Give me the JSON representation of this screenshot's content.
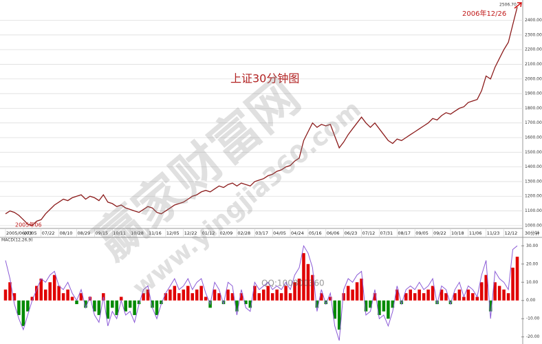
{
  "chart_data": [
    {
      "type": "line",
      "title": "上证30分钟图",
      "categories": [
        "2005/06/03",
        null,
        null,
        null,
        "07/05",
        null,
        null,
        null,
        "07/22",
        null,
        null,
        null,
        "08/10",
        null,
        null,
        null,
        "08/29",
        null,
        null,
        null,
        "09/15",
        null,
        null,
        null,
        "10/11",
        null,
        null,
        null,
        "10/28",
        null,
        null,
        null,
        "11/16",
        null,
        null,
        null,
        "12/05",
        null,
        null,
        null,
        "12/22",
        null,
        null,
        null,
        "01/12",
        null,
        null,
        null,
        "02/09",
        null,
        null,
        null,
        "02/28",
        null,
        null,
        null,
        "03/17",
        null,
        null,
        null,
        "04/05",
        null,
        null,
        null,
        "04/24",
        null,
        null,
        null,
        "05/16",
        null,
        null,
        null,
        "06/06",
        null,
        null,
        null,
        "06/23",
        null,
        null,
        null,
        "07/12",
        null,
        null,
        null,
        "07/31",
        null,
        null,
        null,
        "08/17",
        null,
        null,
        null,
        "09/05",
        null,
        null,
        null,
        "09/22",
        null,
        null,
        null,
        "10/18",
        null,
        null,
        null,
        "11/06",
        null,
        null,
        null,
        "11/23",
        null,
        null,
        null,
        "12/12",
        null,
        null,
        null
      ],
      "x_label": "30分钟",
      "series": [
        {
          "color": "#8b1a1a",
          "values": [
            1080,
            1100,
            1090,
            1070,
            1040,
            1010,
            1000,
            1030,
            1040,
            1080,
            1110,
            1140,
            1160,
            1180,
            1170,
            1190,
            1200,
            1210,
            1180,
            1200,
            1190,
            1170,
            1210,
            1160,
            1150,
            1130,
            1140,
            1120,
            1110,
            1100,
            1090,
            1110,
            1130,
            1120,
            1090,
            1080,
            1100,
            1120,
            1140,
            1150,
            1160,
            1180,
            1200,
            1210,
            1230,
            1240,
            1230,
            1250,
            1270,
            1260,
            1280,
            1290,
            1270,
            1290,
            1280,
            1270,
            1300,
            1310,
            1320,
            1340,
            1350,
            1370,
            1380,
            1400,
            1410,
            1440,
            1460,
            1580,
            1640,
            1700,
            1670,
            1690,
            1680,
            1690,
            1610,
            1530,
            1570,
            1620,
            1660,
            1700,
            1740,
            1700,
            1670,
            1700,
            1660,
            1620,
            1580,
            1560,
            1590,
            1580,
            1600,
            1620,
            1640,
            1660,
            1680,
            1700,
            1730,
            1720,
            1750,
            1770,
            1760,
            1780,
            1800,
            1810,
            1840,
            1850,
            1860,
            1920,
            2020,
            2000,
            2080,
            2140,
            2200,
            2250,
            2370,
            2490
          ]
        }
      ],
      "ylim": [
        990,
        2515
      ],
      "yticks": [
        {
          "value": 1000,
          "label": "1000.00"
        },
        {
          "value": 1100,
          "label": "1100.00"
        },
        {
          "value": 1200,
          "label": "1200.00"
        },
        {
          "value": 1300,
          "label": "1300.00"
        },
        {
          "value": 1400,
          "label": "1400.00"
        },
        {
          "value": 1500,
          "label": "1500.00"
        },
        {
          "value": 1600,
          "label": "1600.00"
        },
        {
          "value": 1700,
          "label": "1700.00"
        },
        {
          "value": 1800,
          "label": "1800.00"
        },
        {
          "value": 1900,
          "label": "1900.00"
        },
        {
          "value": 2000,
          "label": "2000.00"
        },
        {
          "value": 2100,
          "label": "2100.00"
        },
        {
          "value": 2200,
          "label": "2200.00"
        },
        {
          "value": 2300,
          "label": "2300.00"
        },
        {
          "value": 2400,
          "label": "2400.00"
        }
      ],
      "grid": true,
      "high": {
        "value": 2506.7,
        "label": "2506.70"
      },
      "annotations": [
        "2006年12/26",
        "2005年06"
      ]
    },
    {
      "type": "combo",
      "title": "MACD(12,26,9)",
      "series": [
        {
          "type": "bar",
          "color": "#e00000",
          "negative_color": "#008a00",
          "values": [
            6,
            10,
            4,
            -8,
            -14,
            -6,
            2,
            8,
            12,
            6,
            10,
            14,
            8,
            4,
            6,
            2,
            -2,
            4,
            -4,
            2,
            -6,
            -8,
            4,
            -10,
            -4,
            -8,
            2,
            -6,
            -4,
            -8,
            -2,
            4,
            6,
            -4,
            -8,
            -2,
            4,
            6,
            8,
            4,
            6,
            8,
            4,
            6,
            8,
            2,
            -4,
            6,
            4,
            -2,
            6,
            4,
            -6,
            4,
            -2,
            -4,
            8,
            4,
            6,
            8,
            4,
            6,
            4,
            8,
            4,
            10,
            12,
            26,
            20,
            14,
            -4,
            4,
            -2,
            2,
            -10,
            -16,
            4,
            8,
            6,
            10,
            12,
            -6,
            -4,
            4,
            -8,
            -6,
            -10,
            -4,
            6,
            -2,
            4,
            6,
            4,
            6,
            4,
            6,
            8,
            -2,
            6,
            4,
            -2,
            4,
            6,
            2,
            6,
            4,
            2,
            10,
            14,
            -6,
            10,
            8,
            6,
            4,
            18,
            24
          ]
        },
        {
          "type": "line",
          "color": "#8a5ad6",
          "values": [
            22,
            12,
            -2,
            -10,
            -16,
            -8,
            0,
            6,
            12,
            10,
            14,
            16,
            8,
            6,
            10,
            4,
            0,
            6,
            -4,
            2,
            -8,
            -12,
            2,
            -14,
            -6,
            -10,
            0,
            -8,
            -6,
            -12,
            -2,
            6,
            8,
            -4,
            -10,
            -2,
            4,
            8,
            12,
            6,
            8,
            12,
            6,
            10,
            12,
            4,
            -2,
            10,
            6,
            -2,
            10,
            8,
            -8,
            6,
            -4,
            -6,
            10,
            6,
            8,
            10,
            6,
            8,
            6,
            10,
            6,
            14,
            18,
            30,
            26,
            18,
            -6,
            6,
            -2,
            4,
            -14,
            -22,
            6,
            12,
            10,
            14,
            16,
            -8,
            -6,
            6,
            -10,
            -8,
            -14,
            -6,
            8,
            -2,
            6,
            8,
            6,
            10,
            6,
            8,
            12,
            -2,
            8,
            6,
            -2,
            6,
            10,
            2,
            8,
            6,
            2,
            14,
            22,
            -10,
            16,
            12,
            10,
            6,
            28,
            30
          ]
        }
      ],
      "ylim": [
        -22,
        32
      ],
      "yticks": [
        {
          "value": 30,
          "label": "30.00"
        },
        {
          "value": 20,
          "label": "20.00"
        },
        {
          "value": 10,
          "label": "10.00"
        },
        {
          "value": 0,
          "label": "0.00"
        },
        {
          "value": -10,
          "label": "-10.00"
        },
        {
          "value": -20,
          "label": "-20.00"
        }
      ],
      "grid": false
    }
  ],
  "watermark": {
    "brand": "赢家财富网",
    "url": "www.yingjia360.com",
    "qq": "QQ:100800360"
  }
}
